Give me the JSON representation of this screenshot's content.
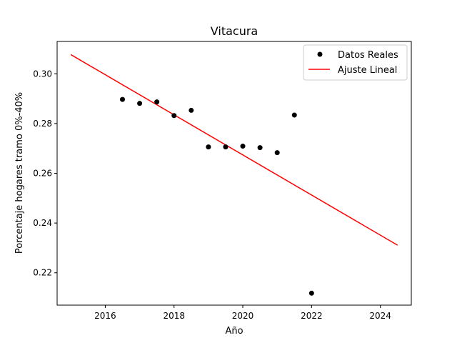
{
  "chart_data": {
    "type": "scatter",
    "title": "Vitacura",
    "xlabel": "Año",
    "ylabel": "Porcentaje hogares tramo 0%-40%",
    "xlim": [
      2014.6,
      2024.9
    ],
    "ylim": [
      0.207,
      0.313
    ],
    "xticks": [
      2016,
      2018,
      2020,
      2022,
      2024
    ],
    "yticks": [
      0.22,
      0.24,
      0.26,
      0.28,
      0.3
    ],
    "grid": false,
    "legend_position": "top-right",
    "series": [
      {
        "name": "Datos Reales",
        "kind": "scatter",
        "color": "#000000",
        "points": [
          {
            "x": 2016.5,
            "y": 0.2897
          },
          {
            "x": 2017.0,
            "y": 0.2881
          },
          {
            "x": 2017.5,
            "y": 0.2887
          },
          {
            "x": 2018.0,
            "y": 0.2832
          },
          {
            "x": 2018.5,
            "y": 0.2853
          },
          {
            "x": 2019.0,
            "y": 0.2706
          },
          {
            "x": 2019.5,
            "y": 0.2706
          },
          {
            "x": 2020.0,
            "y": 0.2709
          },
          {
            "x": 2020.5,
            "y": 0.2703
          },
          {
            "x": 2021.0,
            "y": 0.2683
          },
          {
            "x": 2021.5,
            "y": 0.2834
          },
          {
            "x": 2022.0,
            "y": 0.2118
          }
        ]
      },
      {
        "name": "Ajuste Lineal",
        "kind": "line",
        "color": "#ff0000",
        "points": [
          {
            "x": 2015.0,
            "y": 0.3077
          },
          {
            "x": 2024.5,
            "y": 0.2311
          }
        ]
      }
    ]
  }
}
